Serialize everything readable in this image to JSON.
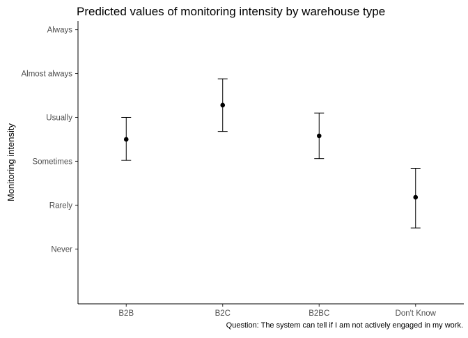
{
  "chart_data": {
    "type": "scatter",
    "title": "Predicted values of monitoring intensity by warehouse type",
    "xlabel": "",
    "ylabel": "Monitoring intensity",
    "caption": "Question: The system can tell if I am not actively engaged in my work.",
    "categories": [
      "B2B",
      "B2C",
      "B2BC",
      "Don't Know"
    ],
    "y_ticks": [
      {
        "value": 1,
        "label": "Never"
      },
      {
        "value": 2,
        "label": "Rarely"
      },
      {
        "value": 3,
        "label": "Sometimes"
      },
      {
        "value": 4,
        "label": "Usually"
      },
      {
        "value": 5,
        "label": "Almost always"
      },
      {
        "value": 6,
        "label": "Always"
      }
    ],
    "ylim": [
      -0.25,
      6.2
    ],
    "values": [
      3.5,
      4.28,
      3.58,
      2.18
    ],
    "lower": [
      3.02,
      3.68,
      3.06,
      1.48
    ],
    "upper": [
      4.0,
      4.88,
      4.1,
      2.84
    ],
    "grid": false,
    "legend": "none",
    "colors": {
      "point": "#000000",
      "axis": "#000000",
      "tick_label": "#4d4d4d"
    }
  }
}
